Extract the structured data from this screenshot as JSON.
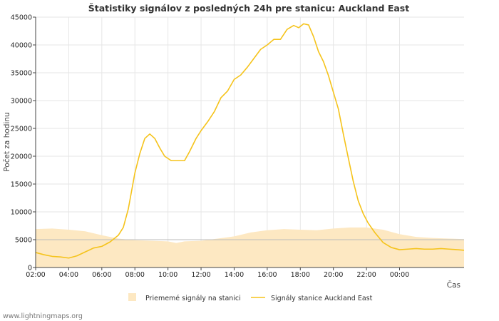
{
  "credit": "www.lightningmaps.org",
  "colors": {
    "station_line": "#f5c31b",
    "average_fill": "#fde8c2",
    "grid": "#e6e6e6",
    "axis": "#444444",
    "reference_line": "#bbbbbb"
  },
  "chart_data": {
    "type": "line",
    "title": "Štatistiky signálov z posledných 24h pre stanicu: Auckland East",
    "xlabel": "Čas",
    "ylabel": "Počet za hodinu",
    "ylim": [
      0,
      45000
    ],
    "xlim": [
      2,
      27.9
    ],
    "y_ticks": [
      0,
      5000,
      10000,
      15000,
      20000,
      25000,
      30000,
      35000,
      40000,
      45000
    ],
    "x_ticks": [
      {
        "value": 2,
        "label": "02:00"
      },
      {
        "value": 4,
        "label": "04:00"
      },
      {
        "value": 6,
        "label": "06:00"
      },
      {
        "value": 8,
        "label": "08:00"
      },
      {
        "value": 10,
        "label": "10:00"
      },
      {
        "value": 12,
        "label": "12:00"
      },
      {
        "value": 14,
        "label": "14:00"
      },
      {
        "value": 16,
        "label": "16:00"
      },
      {
        "value": 18,
        "label": "18:00"
      },
      {
        "value": 20,
        "label": "20:00"
      },
      {
        "value": 22,
        "label": "22:00"
      },
      {
        "value": 24,
        "label": "00:00"
      }
    ],
    "reference_line": 5000,
    "legend": [
      "Priememé signály na stanici",
      "Signály stanice Auckland East"
    ],
    "series": [
      {
        "name": "Priememé signály na stanici",
        "kind": "area",
        "x": [
          2,
          3,
          4,
          5,
          6,
          7,
          8,
          9,
          10,
          10.5,
          11,
          12,
          13,
          14,
          15,
          16,
          17,
          18,
          19,
          20,
          21,
          22,
          23,
          24,
          25,
          26,
          27,
          27.9
        ],
        "values": [
          6900,
          7000,
          6800,
          6500,
          5800,
          5200,
          4900,
          4800,
          4700,
          4400,
          4700,
          4800,
          5200,
          5600,
          6300,
          6700,
          6900,
          6800,
          6700,
          7000,
          7200,
          7200,
          6800,
          6000,
          5500,
          5300,
          5200,
          5100
        ]
      },
      {
        "name": "Signály stanice Auckland East",
        "kind": "line",
        "x": [
          2,
          2.5,
          3,
          3.5,
          4,
          4.5,
          5,
          5.5,
          6,
          6.5,
          7,
          7.3,
          7.6,
          8,
          8.3,
          8.6,
          8.9,
          9.2,
          9.5,
          9.8,
          10.2,
          10.6,
          11,
          11.3,
          11.7,
          12,
          12.4,
          12.8,
          13.2,
          13.6,
          14,
          14.4,
          14.8,
          15.2,
          15.6,
          16,
          16.4,
          16.8,
          17.2,
          17.6,
          17.9,
          18.2,
          18.5,
          18.8,
          19.1,
          19.4,
          19.7,
          20,
          20.3,
          20.6,
          20.9,
          21.2,
          21.5,
          21.8,
          22.1,
          22.5,
          23,
          23.5,
          24,
          24.5,
          25,
          25.5,
          26,
          26.5,
          27,
          27.5,
          27.9
        ],
        "values": [
          2700,
          2300,
          2000,
          1900,
          1700,
          2100,
          2800,
          3500,
          3800,
          4600,
          5800,
          7200,
          10500,
          17000,
          20500,
          23200,
          24000,
          23200,
          21500,
          20000,
          19200,
          19200,
          19200,
          20800,
          23200,
          24600,
          26200,
          28000,
          30500,
          31700,
          33800,
          34600,
          36000,
          37600,
          39200,
          40000,
          41000,
          41000,
          42800,
          43500,
          43100,
          43800,
          43600,
          41500,
          38800,
          37000,
          34500,
          31500,
          28500,
          24000,
          19700,
          15500,
          12000,
          9700,
          8000,
          6300,
          4500,
          3600,
          3200,
          3300,
          3400,
          3300,
          3300,
          3400,
          3300,
          3200,
          3100
        ]
      }
    ]
  }
}
